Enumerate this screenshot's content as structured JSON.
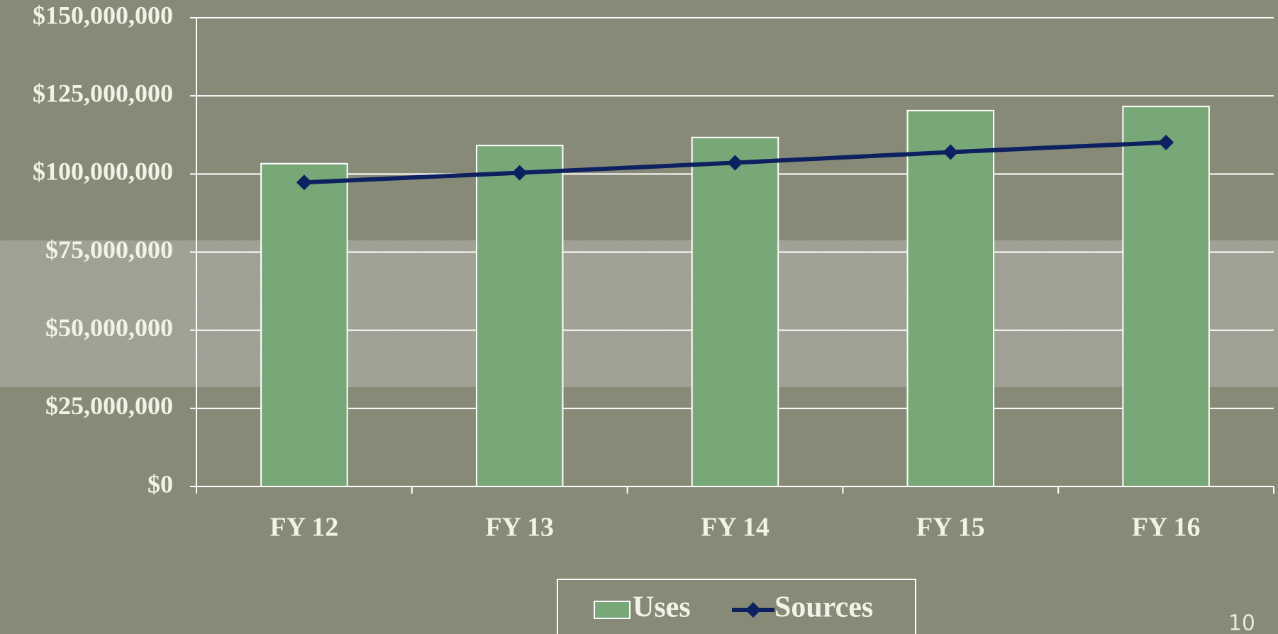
{
  "chart_data": {
    "type": "bar_line",
    "categories": [
      "FY 12",
      "FY 13",
      "FY 14",
      "FY 15",
      "FY 16"
    ],
    "series": [
      {
        "name": "Uses",
        "type": "bar",
        "color": "#78a878",
        "values": [
          103300000,
          109100000,
          111700000,
          120300000,
          121600000
        ]
      },
      {
        "name": "Sources",
        "type": "line",
        "color": "#0d2060",
        "values": [
          97300000,
          100400000,
          103600000,
          107000000,
          110100000
        ]
      }
    ],
    "ylim": [
      0,
      150000000
    ],
    "yticks": [
      {
        "value": 0,
        "label": "$0"
      },
      {
        "value": 25000000,
        "label": "$25,000,000"
      },
      {
        "value": 50000000,
        "label": "$50,000,000"
      },
      {
        "value": 75000000,
        "label": "$75,000,000"
      },
      {
        "value": 100000000,
        "label": "$100,000,000"
      },
      {
        "value": 125000000,
        "label": "$125,000,000"
      },
      {
        "value": 150000000,
        "label": "$150,000,000"
      }
    ],
    "grid": true,
    "legend": "bottom",
    "page_number": "10"
  }
}
